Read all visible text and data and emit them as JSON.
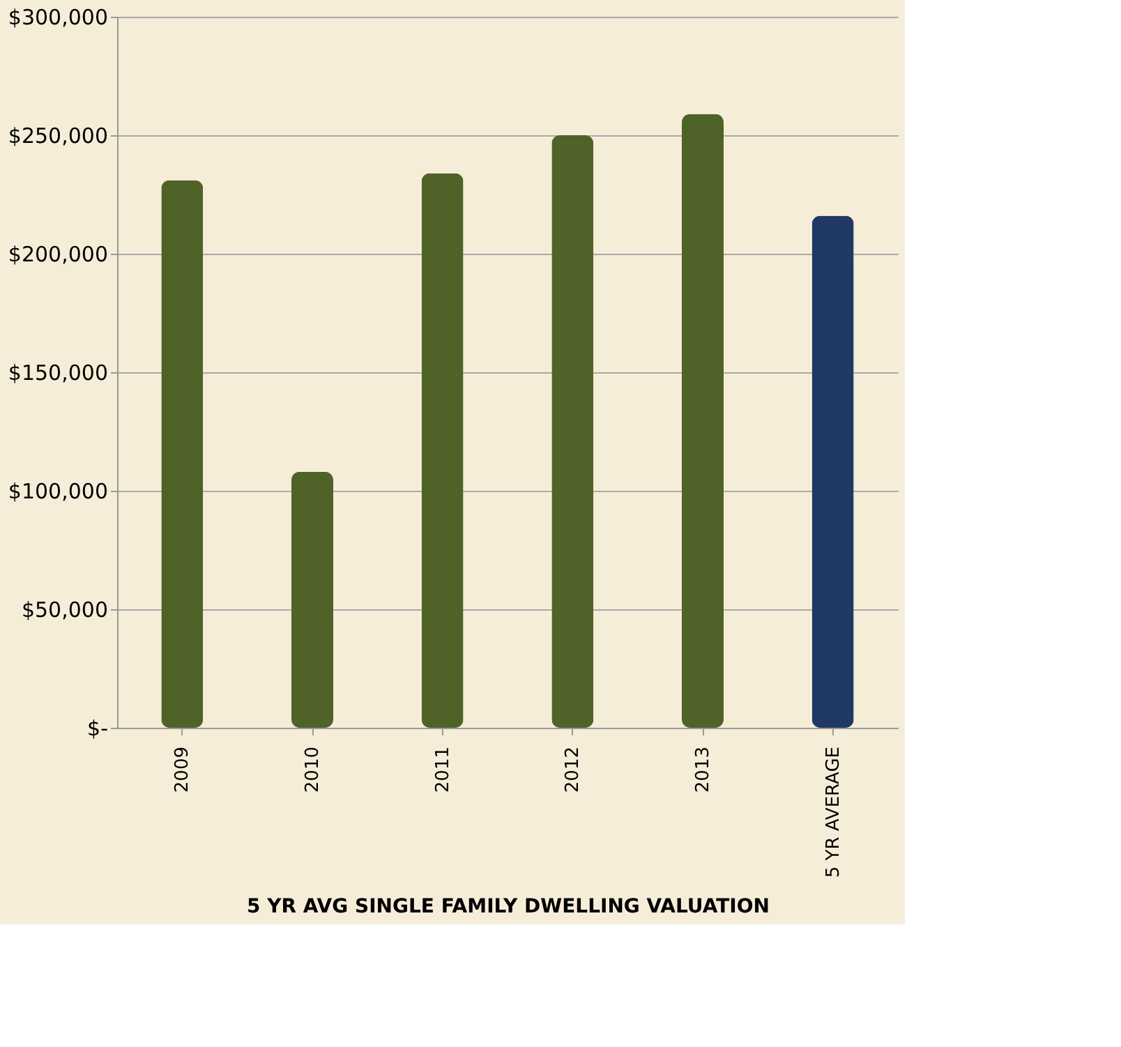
{
  "chart_data": {
    "type": "bar",
    "xlabel": "5 YR AVG SINGLE FAMILY DWELLING VALUATION",
    "categories": [
      "2009",
      "2010",
      "2011",
      "2012",
      "2013",
      "5 YR AVERAGE"
    ],
    "values": [
      231000,
      108000,
      234000,
      250000,
      259000,
      216000
    ],
    "colors": [
      "#4f6228",
      "#4f6228",
      "#4f6228",
      "#4f6228",
      "#4f6228",
      "#1f3864"
    ],
    "ylim": [
      0,
      300000
    ],
    "yticks": [
      {
        "value": 0,
        "label": "$-"
      },
      {
        "value": 50000,
        "label": "$50,000"
      },
      {
        "value": 100000,
        "label": "$100,000"
      },
      {
        "value": 150000,
        "label": "$150,000"
      },
      {
        "value": 200000,
        "label": "$200,000"
      },
      {
        "value": 250000,
        "label": "$250,000"
      },
      {
        "value": 300000,
        "label": "$300,000"
      }
    ],
    "grid": "y",
    "legend": false
  }
}
